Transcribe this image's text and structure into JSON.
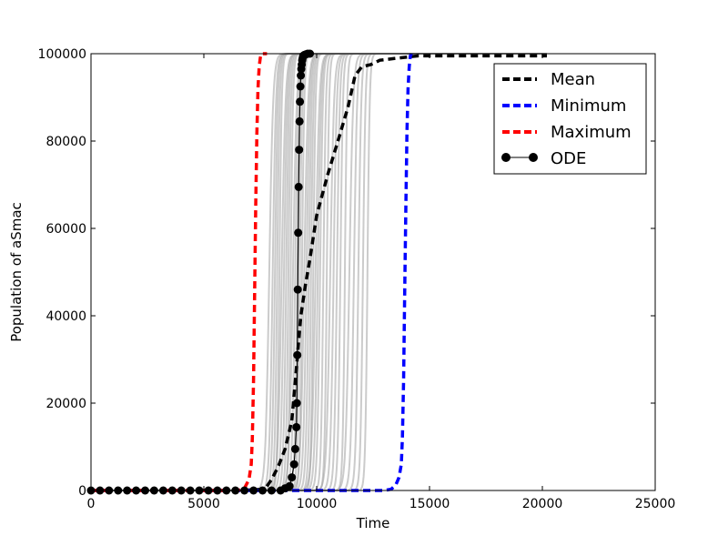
{
  "chart_data": {
    "type": "line",
    "title": "",
    "xlabel": "Time",
    "ylabel": "Population of aSmac",
    "xlim": [
      0,
      25000
    ],
    "ylim": [
      0,
      100000
    ],
    "xticks": [
      0,
      5000,
      10000,
      15000,
      20000,
      25000
    ],
    "yticks": [
      0,
      20000,
      40000,
      60000,
      80000,
      100000
    ],
    "xtick_labels": [
      "0",
      "5000",
      "10000",
      "15000",
      "20000",
      "25000"
    ],
    "ytick_labels": [
      "0",
      "20000",
      "40000",
      "60000",
      "80000",
      "100000"
    ],
    "grid": false,
    "legend_position": "top-right",
    "colors": {
      "mean": "#000000",
      "minimum": "#0000ff",
      "maximum": "#ff0000",
      "ode": "#000000",
      "trajectories": "#a0a0a0"
    },
    "series": [
      {
        "name": "Mean",
        "style": "dashed",
        "x": [
          0,
          6500,
          7700,
          8000,
          8300,
          8600,
          8900,
          9100,
          9300,
          9500,
          9700,
          10000,
          10500,
          11000,
          11400,
          11700,
          12000,
          12400,
          12800,
          13600,
          14500,
          16000,
          20200
        ],
        "y": [
          0,
          0,
          300,
          2500,
          5500,
          9500,
          16000,
          28000,
          40000,
          47000,
          53000,
          63000,
          72500,
          81000,
          88000,
          95000,
          97000,
          97500,
          98500,
          99000,
          99500,
          99500,
          99500
        ]
      },
      {
        "name": "Minimum",
        "style": "dashed",
        "x": [
          0,
          12500,
          13000,
          13300,
          13500,
          13650,
          13750,
          13800,
          13850,
          13900,
          13950,
          14000,
          14050,
          14100,
          14150,
          14200
        ],
        "y": [
          0,
          0,
          0,
          300,
          1200,
          3000,
          6000,
          12000,
          25000,
          45000,
          65000,
          82000,
          92000,
          97000,
          99500,
          100000
        ]
      },
      {
        "name": "Maximum",
        "style": "dashed",
        "x": [
          0,
          6500,
          6800,
          7000,
          7100,
          7150,
          7200,
          7250,
          7300,
          7350,
          7400,
          7450,
          7500,
          7550,
          7600,
          7800
        ],
        "y": [
          0,
          0,
          500,
          2500,
          6000,
          12000,
          25000,
          45000,
          65000,
          82000,
          92000,
          97000,
          99000,
          100000,
          100000,
          100000
        ]
      },
      {
        "name": "ODE",
        "style": "solid-markers",
        "x": [
          0,
          400,
          800,
          1200,
          1600,
          2000,
          2400,
          2800,
          3200,
          3600,
          4000,
          4400,
          4800,
          5200,
          5600,
          6000,
          6400,
          6800,
          7200,
          7600,
          8000,
          8400,
          8600,
          8800,
          8900,
          9000,
          9050,
          9100,
          9120,
          9140,
          9160,
          9180,
          9200,
          9220,
          9240,
          9260,
          9280,
          9300,
          9320,
          9340,
          9360,
          9380,
          9400,
          9450,
          9500,
          9550,
          9600,
          9700
        ],
        "y": [
          0,
          0,
          0,
          0,
          0,
          0,
          0,
          0,
          0,
          0,
          0,
          0,
          0,
          0,
          0,
          0,
          0,
          0,
          0,
          0,
          0,
          0,
          500,
          1000,
          3000,
          6000,
          9500,
          14500,
          20000,
          31000,
          46000,
          59000,
          69500,
          78000,
          84500,
          89000,
          92500,
          95000,
          96500,
          97500,
          98500,
          99000,
          99500,
          99700,
          99800,
          99900,
          100000,
          100000
        ]
      }
    ],
    "gray_trajectory_midpoints": [
      7900,
      8050,
      8150,
      8250,
      8350,
      8450,
      8550,
      8650,
      8750,
      8850,
      8950,
      9050,
      9150,
      9250,
      9350,
      9450,
      9550,
      9650,
      9750,
      9850,
      9950,
      10050,
      10150,
      10300,
      10450,
      10600,
      10750,
      10900,
      11050,
      11250,
      11450,
      11650,
      11850,
      12050,
      12250
    ]
  }
}
